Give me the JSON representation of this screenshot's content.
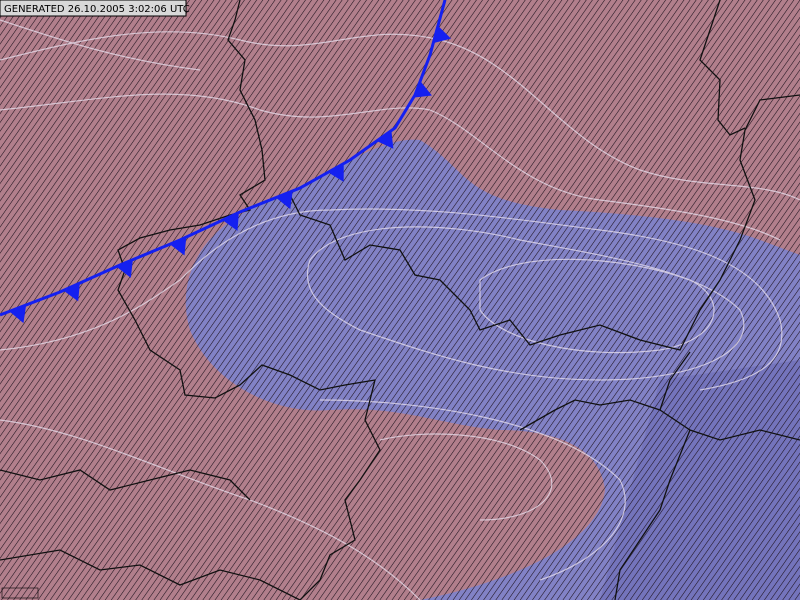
{
  "header": {
    "label": "GENERATED 26.10.2005 3:02:06 UTC"
  }
}
